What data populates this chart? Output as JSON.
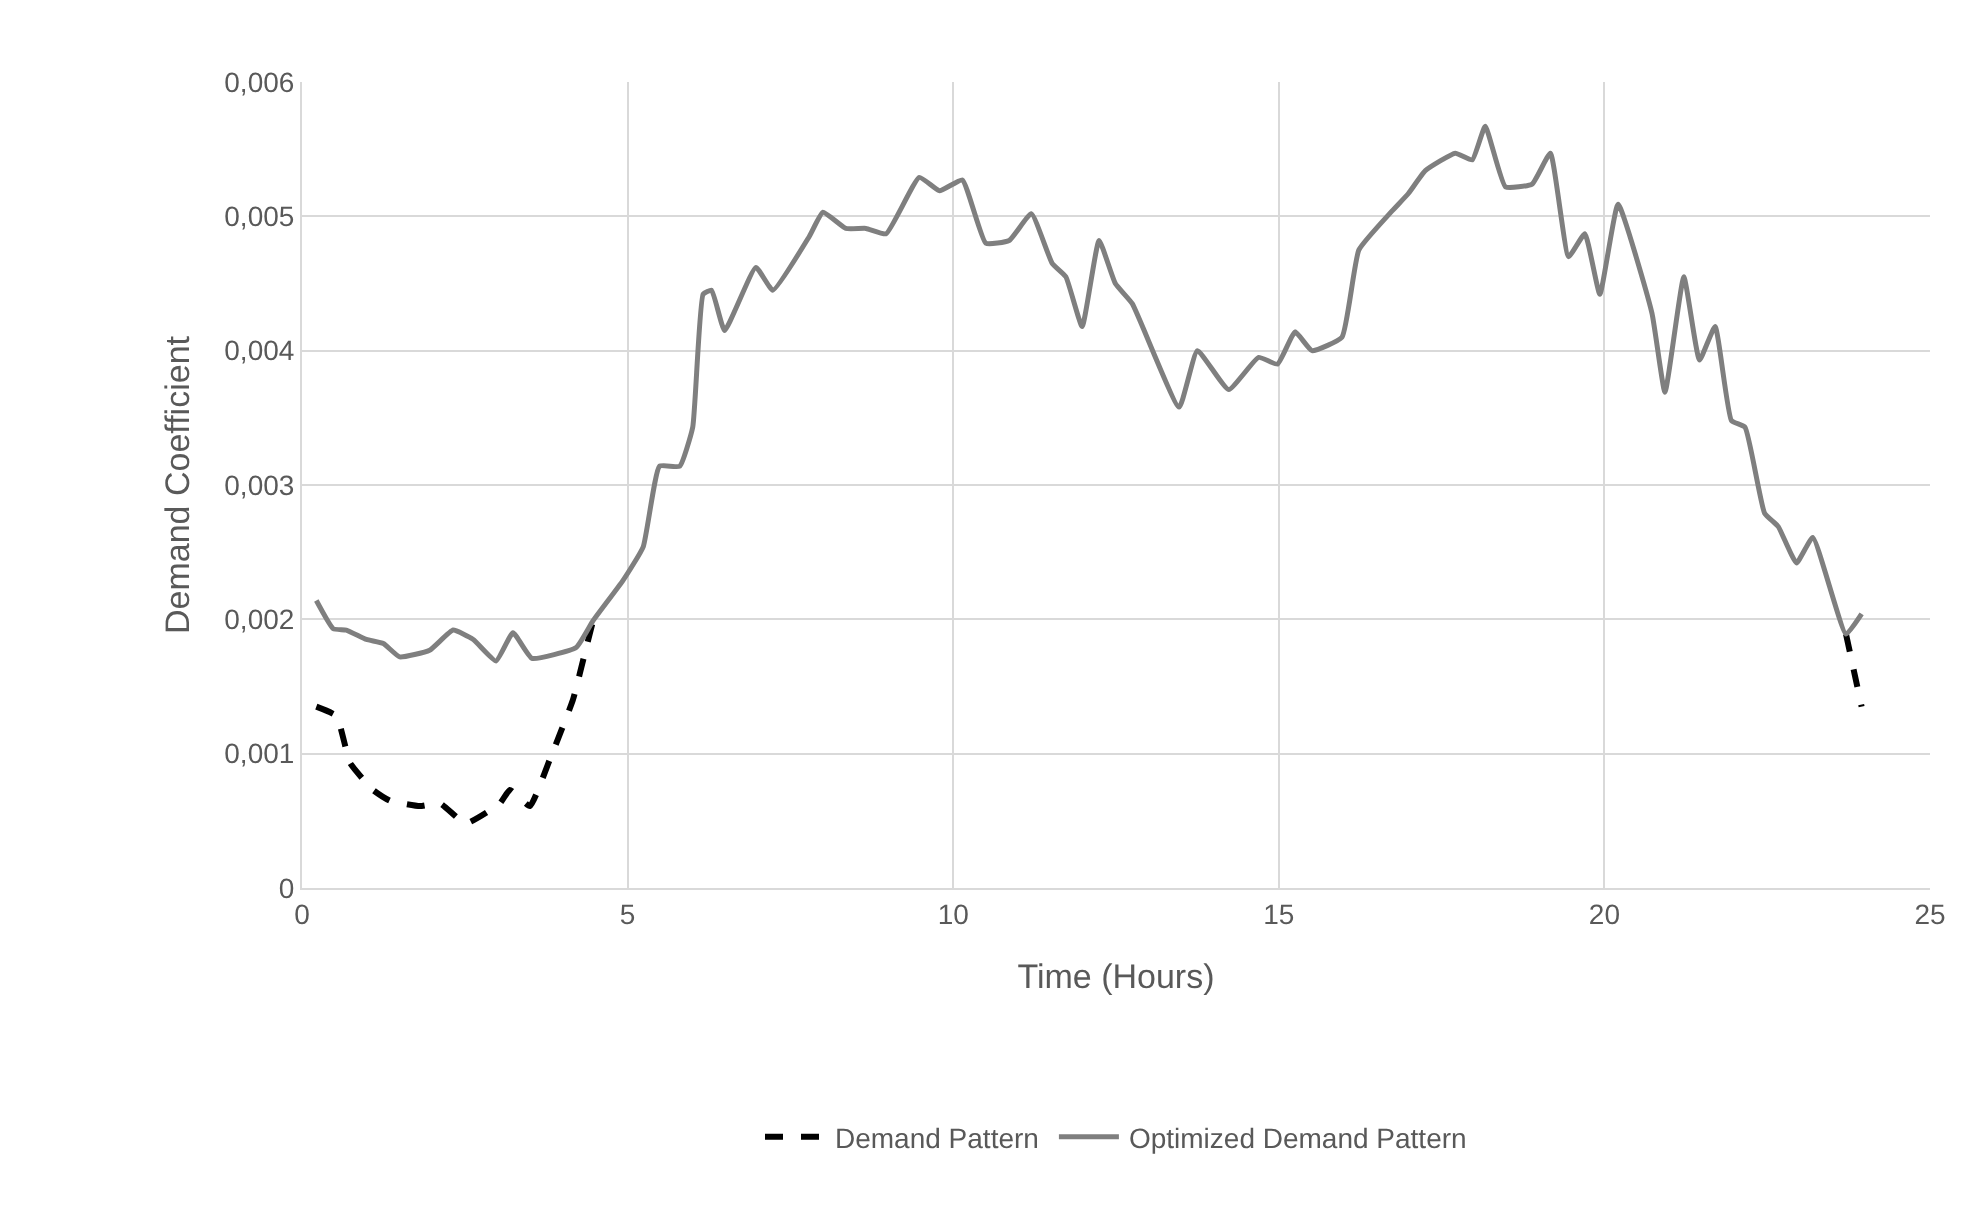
{
  "chart_data": {
    "type": "line",
    "xlabel": "Time (Hours)",
    "ylabel": "Demand Coefficient",
    "xlim": [
      0,
      25
    ],
    "xticks": [
      0,
      5,
      10,
      15,
      20,
      25
    ],
    "ylim": [
      0,
      0.006
    ],
    "yticks": [
      0,
      {
        "value": 0.001,
        "label": "0,001"
      },
      {
        "value": 0.002,
        "label": "0,002"
      },
      {
        "value": 0.003,
        "label": "0,003"
      },
      {
        "value": 0.004,
        "label": "0,004"
      },
      {
        "value": 0.005,
        "label": "0,005"
      },
      {
        "value": 0.006,
        "label": "0,006"
      }
    ],
    "grid": true,
    "legend": "bottom",
    "series": [
      {
        "name": "Demand Pattern",
        "color": "#000000",
        "line_style": "dashed",
        "x": [
          0.22,
          0.53,
          0.74,
          1.09,
          1.35,
          1.81,
          2.12,
          2.51,
          3.04,
          3.19,
          3.5,
          3.8,
          4.16,
          4.37,
          4.47,
          10,
          23.71,
          23.95
        ],
        "values": [
          0.00135,
          0.00128,
          0.00093,
          0.00073,
          0.00065,
          0.00061,
          0.00063,
          0.00048,
          0.00063,
          0.00073,
          0.00061,
          0.00095,
          0.0014,
          0.0018,
          0.00199,
          null,
          0.00189,
          0.00135
        ]
      },
      {
        "name": "Optimized Demand Pattern",
        "color": "#7f7f7f",
        "line_style": "solid",
        "x": [
          0.22,
          0.48,
          0.68,
          0.99,
          1.25,
          1.5,
          1.96,
          2.32,
          2.63,
          2.98,
          3.24,
          3.53,
          4.21,
          4.47,
          4.93,
          5.24,
          5.49,
          5.8,
          6.0,
          6.16,
          6.29,
          6.49,
          6.97,
          7.23,
          7.79,
          8.0,
          8.35,
          8.66,
          8.97,
          9.48,
          9.79,
          10.14,
          10.5,
          10.86,
          11.2,
          11.52,
          11.73,
          11.98,
          12.24,
          12.49,
          12.75,
          13.47,
          13.75,
          14.23,
          14.69,
          14.98,
          15.25,
          15.51,
          15.97,
          16.23,
          16.74,
          16.99,
          17.25,
          17.71,
          17.97,
          18.17,
          18.48,
          18.89,
          19.17,
          19.45,
          19.7,
          19.93,
          20.21,
          20.73,
          20.93,
          21.22,
          21.46,
          21.7,
          21.95,
          22.16,
          22.46,
          22.67,
          22.95,
          23.2,
          23.71,
          23.95
        ],
        "values": [
          0.00214,
          0.00193,
          0.00192,
          0.00185,
          0.00182,
          0.00172,
          0.00177,
          0.00192,
          0.00185,
          0.00169,
          0.0019,
          0.00171,
          0.00179,
          0.00199,
          0.00229,
          0.00254,
          0.00314,
          0.00314,
          0.00343,
          0.00442,
          0.00445,
          0.00415,
          0.00462,
          0.00445,
          0.00485,
          0.00503,
          0.00491,
          0.00491,
          0.00487,
          0.00529,
          0.00519,
          0.00527,
          0.0048,
          0.00482,
          0.00502,
          0.00465,
          0.00455,
          0.00418,
          0.00482,
          0.0045,
          0.00435,
          0.00358,
          0.004,
          0.00371,
          0.00395,
          0.0039,
          0.00414,
          0.004,
          0.0041,
          0.00475,
          0.00504,
          0.00517,
          0.00534,
          0.00547,
          0.00542,
          0.00567,
          0.00522,
          0.00524,
          0.00547,
          0.0047,
          0.00487,
          0.00442,
          0.00509,
          0.00428,
          0.00369,
          0.00455,
          0.00393,
          0.00418,
          0.00348,
          0.00343,
          0.00279,
          0.00269,
          0.00242,
          0.00261,
          0.00189,
          0.00204
        ]
      }
    ]
  }
}
